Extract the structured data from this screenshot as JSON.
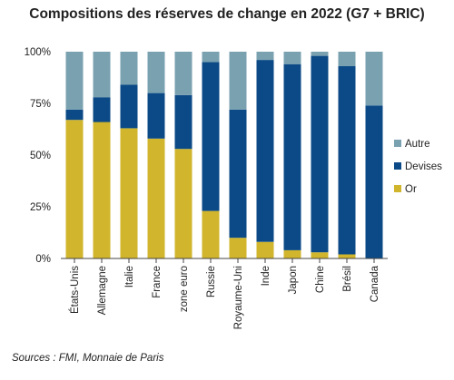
{
  "chart_data": {
    "type": "bar",
    "stacked": true,
    "title": "Compositions des réserves de change en 2022 (G7 + BRIC)",
    "source": "Sources : FMI, Monnaie de Paris",
    "categories": [
      "États-Unis",
      "Allemagne",
      "Italie",
      "France",
      "zone euro",
      "Russie",
      "Royaume-Uni",
      "Inde",
      "Japon",
      "Chine",
      "Brésil",
      "Canada"
    ],
    "series": [
      {
        "name": "Or",
        "color": "#d1b52c",
        "values": [
          67,
          66,
          63,
          58,
          53,
          23,
          10,
          8,
          4,
          3,
          2,
          0
        ]
      },
      {
        "name": "Devises",
        "color": "#0b4a86",
        "values": [
          5,
          12,
          21,
          22,
          26,
          72,
          62,
          88,
          90,
          95,
          91,
          74
        ]
      },
      {
        "name": "Autre",
        "color": "#7aa1b0",
        "values": [
          28,
          22,
          16,
          20,
          21,
          5,
          28,
          4,
          6,
          2,
          7,
          26
        ]
      }
    ],
    "legend_order": [
      "Autre",
      "Devises",
      "Or"
    ],
    "legend_position": "right",
    "yticks": [
      "0%",
      "25%",
      "50%",
      "75%",
      "100%"
    ],
    "ylim": [
      0,
      100
    ],
    "grid": false
  }
}
